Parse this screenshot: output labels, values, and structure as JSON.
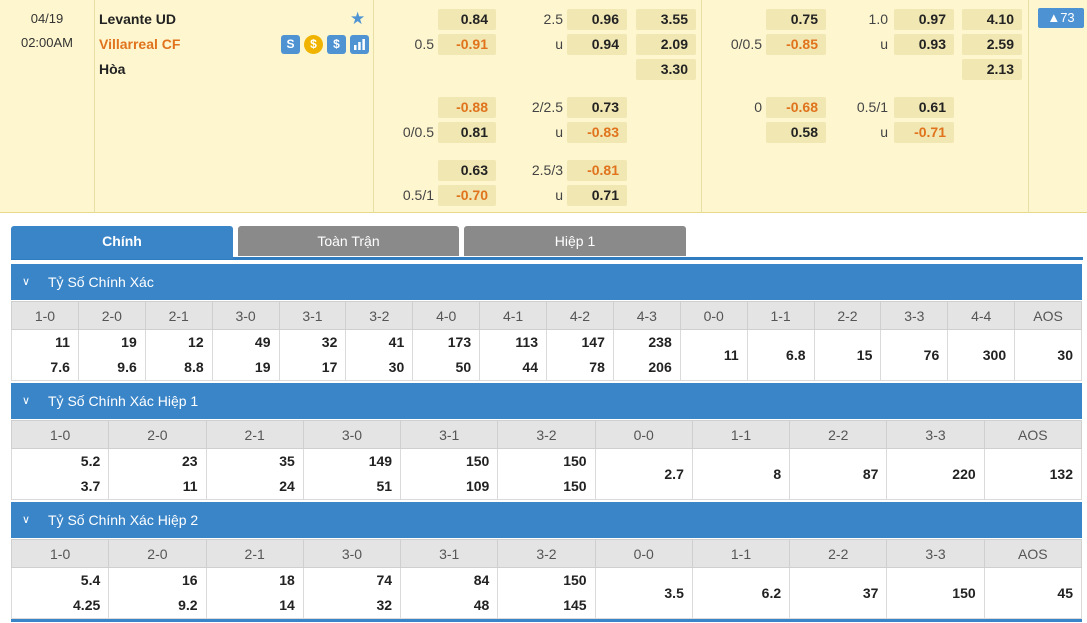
{
  "match": {
    "date": "04/19",
    "time": "02:00AM",
    "home": "Levante UD",
    "away": "Villarreal CF",
    "draw": "Hòa",
    "more_count": "▲73",
    "icon_colors": {
      "blue": "#4f93d3",
      "yellow": "#f0b400"
    },
    "odds_rows": [
      {
        "c1": "",
        "c2": "0.84",
        "c3": "2.5",
        "c4": "0.96",
        "c5": "3.55",
        "c6": "",
        "c7": "0.75",
        "c8": "1.0",
        "c9": "0.97",
        "c10": "4.10"
      },
      {
        "c1": "0.5",
        "c2": "-0.91",
        "c3": "u",
        "c4": "0.94",
        "c5": "2.09",
        "c6": "0/0.5",
        "c7": "-0.85",
        "c8": "u",
        "c9": "0.93",
        "c10": "2.59"
      },
      {
        "c1": "",
        "c2": "",
        "c3": "",
        "c4": "",
        "c5": "3.30",
        "c6": "",
        "c7": "",
        "c8": "",
        "c9": "",
        "c10": "2.13"
      },
      {
        "c1": "",
        "c2": "-0.88",
        "c3": "2/2.5",
        "c4": "0.73",
        "c5": "",
        "c6": "0",
        "c7": "-0.68",
        "c8": "0.5/1",
        "c9": "0.61",
        "c10": ""
      },
      {
        "c1": "0/0.5",
        "c2": "0.81",
        "c3": "u",
        "c4": "-0.83",
        "c5": "",
        "c6": "",
        "c7": "0.58",
        "c8": "u",
        "c9": "-0.71",
        "c10": ""
      },
      {
        "c1": "",
        "c2": "0.63",
        "c3": "2.5/3",
        "c4": "-0.81",
        "c5": "",
        "c6": "",
        "c7": "",
        "c8": "",
        "c9": "",
        "c10": ""
      },
      {
        "c1": "0.5/1",
        "c2": "-0.70",
        "c3": "u",
        "c4": "0.71",
        "c5": "",
        "c6": "",
        "c7": "",
        "c8": "",
        "c9": "",
        "c10": ""
      }
    ]
  },
  "tabs": [
    "Chính",
    "Toàn Trận",
    "Hiệp 1"
  ],
  "sections": [
    {
      "title": "Tỷ Số Chính Xác",
      "headers": [
        "1-0",
        "2-0",
        "2-1",
        "3-0",
        "3-1",
        "3-2",
        "4-0",
        "4-1",
        "4-2",
        "4-3",
        "0-0",
        "1-1",
        "2-2",
        "3-3",
        "4-4",
        "AOS"
      ],
      "top": [
        "11",
        "19",
        "12",
        "49",
        "32",
        "41",
        "173",
        "113",
        "147",
        "238",
        "11",
        "6.8",
        "15",
        "76",
        "300",
        "30"
      ],
      "bottom": [
        "7.6",
        "9.6",
        "8.8",
        "19",
        "17",
        "30",
        "50",
        "44",
        "78",
        "206",
        "",
        "",
        "",
        "",
        "",
        ""
      ]
    },
    {
      "title": "Tỷ Số Chính Xác Hiệp 1",
      "headers": [
        "1-0",
        "2-0",
        "2-1",
        "3-0",
        "3-1",
        "3-2",
        "0-0",
        "1-1",
        "2-2",
        "3-3",
        "AOS"
      ],
      "top": [
        "5.2",
        "23",
        "35",
        "149",
        "150",
        "150",
        "2.7",
        "8",
        "87",
        "220",
        "132"
      ],
      "bottom": [
        "3.7",
        "11",
        "24",
        "51",
        "109",
        "150",
        "",
        "",
        "",
        "",
        ""
      ]
    },
    {
      "title": "Tỷ Số Chính Xác Hiệp 2",
      "headers": [
        "1-0",
        "2-0",
        "2-1",
        "3-0",
        "3-1",
        "3-2",
        "0-0",
        "1-1",
        "2-2",
        "3-3",
        "AOS"
      ],
      "top": [
        "5.4",
        "16",
        "18",
        "74",
        "84",
        "150",
        "3.5",
        "6.2",
        "37",
        "150",
        "45"
      ],
      "bottom": [
        "4.25",
        "9.2",
        "14",
        "32",
        "48",
        "145",
        "",
        "",
        "",
        "",
        ""
      ]
    }
  ]
}
